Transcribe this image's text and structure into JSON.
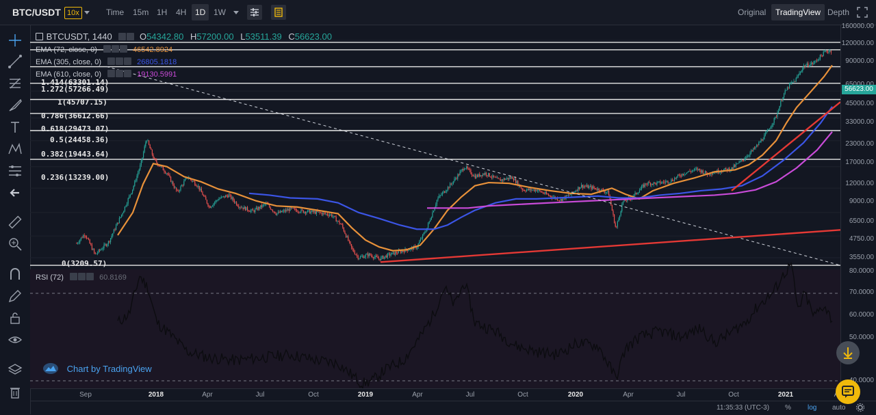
{
  "header": {
    "pair": "BTC/USDT",
    "leverage": "10x",
    "timeframes": [
      "Time",
      "15m",
      "1H",
      "4H",
      "1D",
      "1W"
    ],
    "active_timeframe": "1D",
    "views": [
      "Original",
      "TradingView",
      "Depth"
    ],
    "active_view": "TradingView"
  },
  "legend": {
    "symbol": "BTCUSDT, 1440",
    "open_label": "O",
    "open": "54342.80",
    "high_label": "H",
    "high": "57200.00",
    "low_label": "L",
    "low": "53511.39",
    "close_label": "C",
    "close": "56623.00",
    "ema1_label": "EMA (72, close, 0)",
    "ema1_value": "46542.8924",
    "ema2_label": "EMA (305, close, 0)",
    "ema2_value": "26805.1818",
    "ema3_label": "EMA (610, close, 0)",
    "ema3_value": "19130.5991",
    "rsi_label": "RSI (72)",
    "rsi_value": "60.8169"
  },
  "fib_levels": [
    {
      "label": "1.414(63301.14)"
    },
    {
      "label": "1.272(57266.49)"
    },
    {
      "label": "1(45707.15)"
    },
    {
      "label": "0.786(36612.66)"
    },
    {
      "label": "0.618(29473.07)"
    },
    {
      "label": "0.5(24458.36)"
    },
    {
      "label": "0.382(19443.64)"
    },
    {
      "label": "0.236(13239.00)"
    },
    {
      "label": "0(3209.57)"
    }
  ],
  "price_axis": [
    "160000.00",
    "120000.00",
    "90000.00",
    "65000.00",
    "45000.00",
    "33000.00",
    "23000.00",
    "17000.00",
    "12000.00",
    "9000.00",
    "6500.00",
    "4750.00",
    "3550.00"
  ],
  "last_price": "56623.00",
  "rsi_axis": [
    "80.0000",
    "70.0000",
    "60.0000",
    "50.0000",
    "40.0000"
  ],
  "time_axis": [
    {
      "label": "Sep",
      "bold": false
    },
    {
      "label": "2018",
      "bold": true
    },
    {
      "label": "Apr",
      "bold": false
    },
    {
      "label": "Jul",
      "bold": false
    },
    {
      "label": "Oct",
      "bold": false
    },
    {
      "label": "2019",
      "bold": true
    },
    {
      "label": "Apr",
      "bold": false
    },
    {
      "label": "Jul",
      "bold": false
    },
    {
      "label": "Oct",
      "bold": false
    },
    {
      "label": "2020",
      "bold": true
    },
    {
      "label": "Apr",
      "bold": false
    },
    {
      "label": "Jul",
      "bold": false
    },
    {
      "label": "Oct",
      "bold": false
    },
    {
      "label": "2021",
      "bold": true
    },
    {
      "label": "A",
      "bold": false
    }
  ],
  "status": {
    "time": "11:35:33 (UTC-3)",
    "percent": "%",
    "log": "log",
    "auto": "auto"
  },
  "branding": "Chart by TradingView",
  "colors": {
    "ema72": "#e8913a",
    "ema305": "#3b55e6",
    "ema610": "#c94bd8",
    "trend": "#e53935",
    "up": "#26a69a",
    "down": "#ef5350",
    "background": "#131722"
  }
}
